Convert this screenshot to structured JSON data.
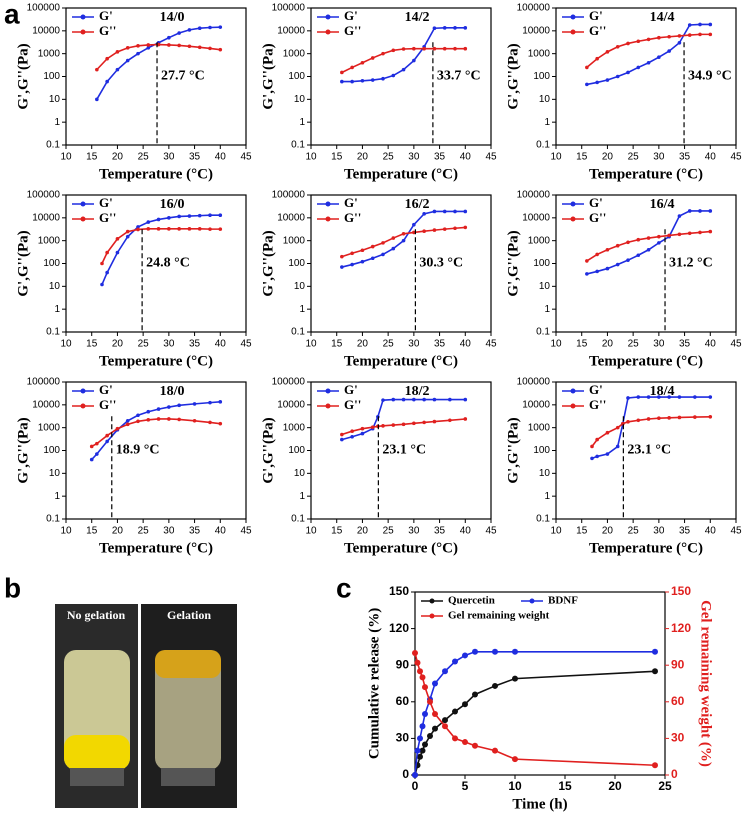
{
  "panel_labels": [
    "a",
    "b",
    "c"
  ],
  "photo": {
    "labels": [
      "No gelation",
      "Gelation"
    ]
  },
  "chart_data": [
    {
      "type": "line",
      "title": "14/0",
      "xlabel": "Temperature (°C)",
      "ylabel": "G',G''(Pa)",
      "log_y": true,
      "xlim": [
        10,
        45
      ],
      "xticks": [
        10,
        15,
        20,
        25,
        30,
        35,
        40,
        45
      ],
      "ylim": [
        0.1,
        100000
      ],
      "yticks": [
        0.1,
        1,
        10,
        100,
        1000,
        10000,
        100000
      ],
      "x": [
        16,
        18,
        20,
        22,
        24,
        26,
        28,
        30,
        32,
        34,
        36,
        38,
        40
      ],
      "annotation": {
        "value": 27.7,
        "label": "27.7 °C"
      },
      "series": [
        {
          "name": "G'",
          "color": "#1f2de0",
          "values": [
            10,
            60,
            200,
            500,
            1000,
            1800,
            3000,
            5000,
            8000,
            11000,
            13000,
            14000,
            14500
          ]
        },
        {
          "name": "G''",
          "color": "#e0201f",
          "values": [
            200,
            600,
            1200,
            1800,
            2200,
            2400,
            2500,
            2400,
            2300,
            2100,
            1900,
            1700,
            1500
          ]
        }
      ]
    },
    {
      "type": "line",
      "title": "14/2",
      "xlabel": "Temperature (°C)",
      "ylabel": "G',G''(Pa)",
      "log_y": true,
      "xlim": [
        10,
        45
      ],
      "xticks": [
        10,
        15,
        20,
        25,
        30,
        35,
        40,
        45
      ],
      "ylim": [
        0.1,
        100000
      ],
      "yticks": [
        0.1,
        1,
        10,
        100,
        1000,
        10000,
        100000
      ],
      "x": [
        16,
        18,
        20,
        22,
        24,
        26,
        28,
        30,
        32,
        34,
        36,
        38,
        40
      ],
      "annotation": {
        "value": 33.7,
        "label": "33.7 °C"
      },
      "series": [
        {
          "name": "G'",
          "color": "#1f2de0",
          "values": [
            60,
            60,
            65,
            70,
            80,
            110,
            200,
            500,
            2000,
            13000,
            13500,
            13500,
            13500
          ]
        },
        {
          "name": "G''",
          "color": "#e0201f",
          "values": [
            150,
            250,
            400,
            650,
            1000,
            1400,
            1600,
            1650,
            1650,
            1650,
            1650,
            1650,
            1650
          ]
        }
      ]
    },
    {
      "type": "line",
      "title": "14/4",
      "xlabel": "Temperature (°C)",
      "ylabel": "G',G''(Pa)",
      "log_y": true,
      "xlim": [
        10,
        45
      ],
      "xticks": [
        10,
        15,
        20,
        25,
        30,
        35,
        40,
        45
      ],
      "ylim": [
        0.1,
        100000
      ],
      "yticks": [
        0.1,
        1,
        10,
        100,
        1000,
        10000,
        100000
      ],
      "x": [
        16,
        18,
        20,
        22,
        24,
        26,
        28,
        30,
        32,
        34,
        36,
        38,
        40
      ],
      "annotation": {
        "value": 34.9,
        "label": "34.9 °C"
      },
      "series": [
        {
          "name": "G'",
          "color": "#1f2de0",
          "values": [
            45,
            55,
            70,
            100,
            150,
            250,
            400,
            700,
            1300,
            3000,
            18000,
            19000,
            19000
          ]
        },
        {
          "name": "G''",
          "color": "#e0201f",
          "values": [
            250,
            600,
            1200,
            2000,
            2800,
            3500,
            4200,
            5000,
            5500,
            6000,
            6500,
            7000,
            7000
          ]
        }
      ]
    },
    {
      "type": "line",
      "title": "16/0",
      "xlabel": "Temperature (°C)",
      "ylabel": "G',G''(Pa)",
      "log_y": true,
      "xlim": [
        10,
        45
      ],
      "xticks": [
        10,
        15,
        20,
        25,
        30,
        35,
        40,
        45
      ],
      "ylim": [
        0.1,
        100000
      ],
      "yticks": [
        0.1,
        1,
        10,
        100,
        1000,
        10000,
        100000
      ],
      "x": [
        17,
        18,
        20,
        22,
        24,
        26,
        28,
        30,
        32,
        34,
        36,
        38,
        40
      ],
      "annotation": {
        "value": 24.8,
        "label": "24.8 °C"
      },
      "series": [
        {
          "name": "G'",
          "color": "#1f2de0",
          "values": [
            12,
            40,
            300,
            1500,
            4000,
            6500,
            8500,
            10000,
            11500,
            12000,
            12500,
            13000,
            13000
          ]
        },
        {
          "name": "G''",
          "color": "#e0201f",
          "values": [
            100,
            300,
            1200,
            2500,
            3100,
            3300,
            3300,
            3300,
            3300,
            3300,
            3300,
            3200,
            3200
          ]
        }
      ]
    },
    {
      "type": "line",
      "title": "16/2",
      "xlabel": "Temperature (°C)",
      "ylabel": "G',G''(Pa)",
      "log_y": true,
      "xlim": [
        10,
        45
      ],
      "xticks": [
        10,
        15,
        20,
        25,
        30,
        35,
        40,
        45
      ],
      "ylim": [
        0.1,
        100000
      ],
      "yticks": [
        0.1,
        1,
        10,
        100,
        1000,
        10000,
        100000
      ],
      "x": [
        16,
        18,
        20,
        22,
        24,
        26,
        28,
        30,
        32,
        34,
        36,
        38,
        40
      ],
      "annotation": {
        "value": 30.3,
        "label": "30.3 °C"
      },
      "series": [
        {
          "name": "G'",
          "color": "#1f2de0",
          "values": [
            70,
            90,
            120,
            170,
            250,
            450,
            1000,
            5000,
            15000,
            19000,
            19000,
            19000,
            19000
          ]
        },
        {
          "name": "G''",
          "color": "#e0201f",
          "values": [
            200,
            280,
            380,
            550,
            800,
            1300,
            2000,
            2300,
            2600,
            2900,
            3200,
            3500,
            3800
          ]
        }
      ]
    },
    {
      "type": "line",
      "title": "16/4",
      "xlabel": "Temperature (°C)",
      "ylabel": "G',G''(Pa)",
      "log_y": true,
      "xlim": [
        10,
        45
      ],
      "xticks": [
        10,
        15,
        20,
        25,
        30,
        35,
        40,
        45
      ],
      "ylim": [
        0.1,
        100000
      ],
      "yticks": [
        0.1,
        1,
        10,
        100,
        1000,
        10000,
        100000
      ],
      "x": [
        16,
        18,
        20,
        22,
        24,
        26,
        28,
        30,
        32,
        34,
        36,
        38,
        40
      ],
      "annotation": {
        "value": 31.2,
        "label": "31.2 °C"
      },
      "series": [
        {
          "name": "G'",
          "color": "#1f2de0",
          "values": [
            35,
            45,
            60,
            90,
            140,
            230,
            400,
            800,
            1500,
            12000,
            20000,
            20000,
            20000
          ]
        },
        {
          "name": "G''",
          "color": "#e0201f",
          "values": [
            130,
            250,
            400,
            600,
            850,
            1100,
            1300,
            1500,
            1700,
            1900,
            2100,
            2300,
            2500
          ]
        }
      ]
    },
    {
      "type": "line",
      "title": "18/0",
      "xlabel": "Temperature (°C)",
      "ylabel": "G',G''(Pa)",
      "log_y": true,
      "xlim": [
        10,
        45
      ],
      "xticks": [
        10,
        15,
        20,
        25,
        30,
        35,
        40,
        45
      ],
      "ylim": [
        0.1,
        100000
      ],
      "yticks": [
        0.1,
        1,
        10,
        100,
        1000,
        10000,
        100000
      ],
      "x": [
        15,
        16,
        18,
        20,
        22,
        24,
        26,
        28,
        30,
        32,
        35,
        38,
        40
      ],
      "annotation": {
        "value": 18.9,
        "label": "18.9 °C"
      },
      "series": [
        {
          "name": "G'",
          "color": "#1f2de0",
          "values": [
            40,
            70,
            250,
            800,
            2000,
            3500,
            5000,
            6500,
            8000,
            9500,
            11000,
            12500,
            13500
          ]
        },
        {
          "name": "G''",
          "color": "#e0201f",
          "values": [
            150,
            200,
            450,
            900,
            1400,
            1900,
            2200,
            2400,
            2400,
            2300,
            2000,
            1700,
            1500
          ]
        }
      ]
    },
    {
      "type": "line",
      "title": "18/2",
      "xlabel": "Temperature (°C)",
      "ylabel": "G',G''(Pa)",
      "log_y": true,
      "xlim": [
        10,
        45
      ],
      "xticks": [
        10,
        15,
        20,
        25,
        30,
        35,
        40,
        45
      ],
      "ylim": [
        0.1,
        100000
      ],
      "yticks": [
        0.1,
        1,
        10,
        100,
        1000,
        10000,
        100000
      ],
      "x": [
        16,
        18,
        20,
        22,
        23,
        24,
        26,
        28,
        30,
        32,
        34,
        37,
        40
      ],
      "annotation": {
        "value": 23.1,
        "label": "23.1 °C"
      },
      "series": [
        {
          "name": "G'",
          "color": "#1f2de0",
          "values": [
            300,
            400,
            550,
            900,
            3000,
            16000,
            17000,
            17000,
            17000,
            17000,
            17000,
            17000,
            17000
          ]
        },
        {
          "name": "G''",
          "color": "#e0201f",
          "values": [
            500,
            700,
            900,
            1050,
            1150,
            1200,
            1300,
            1400,
            1550,
            1700,
            1850,
            2100,
            2400
          ]
        }
      ]
    },
    {
      "type": "line",
      "title": "18/4",
      "xlabel": "Temperature (°C)",
      "ylabel": "G',G''(Pa)",
      "log_y": true,
      "xlim": [
        10,
        45
      ],
      "xticks": [
        10,
        15,
        20,
        25,
        30,
        35,
        40,
        45
      ],
      "ylim": [
        0.1,
        100000
      ],
      "yticks": [
        0.1,
        1,
        10,
        100,
        1000,
        10000,
        100000
      ],
      "x": [
        17,
        18,
        20,
        22,
        23,
        24,
        26,
        28,
        30,
        32,
        34,
        37,
        40
      ],
      "annotation": {
        "value": 23.1,
        "label": "23.1 °C"
      },
      "series": [
        {
          "name": "G'",
          "color": "#1f2de0",
          "values": [
            45,
            55,
            70,
            150,
            1500,
            20000,
            22000,
            22000,
            22000,
            22000,
            22000,
            22000,
            22000
          ]
        },
        {
          "name": "G''",
          "color": "#e0201f",
          "values": [
            150,
            300,
            600,
            1000,
            1500,
            1800,
            2100,
            2400,
            2600,
            2700,
            2800,
            2900,
            3000
          ]
        }
      ]
    },
    {
      "type": "line",
      "xlabel": "Time (h)",
      "ylabel": "Cumulative release (%)",
      "y2label": "Gel remaining weight (%)",
      "xlim": [
        0,
        25
      ],
      "xticks": [
        0,
        5,
        10,
        15,
        20,
        25
      ],
      "ylim": [
        0,
        150
      ],
      "yticks": [
        0,
        30,
        60,
        90,
        120,
        150
      ],
      "y2lim": [
        0,
        150
      ],
      "y2ticks": [
        0,
        30,
        60,
        90,
        120,
        150
      ],
      "x": [
        0,
        0.25,
        0.5,
        0.75,
        1,
        1.5,
        2,
        3,
        4,
        5,
        6,
        8,
        10,
        24
      ],
      "series": [
        {
          "name": "Quercetin",
          "color": "#111111",
          "values": [
            0,
            8,
            15,
            20,
            25,
            32,
            38,
            45,
            52,
            58,
            66,
            73,
            79,
            85
          ]
        },
        {
          "name": "BDNF",
          "color": "#1f2de0",
          "values": [
            0,
            20,
            30,
            40,
            50,
            62,
            75,
            85,
            93,
            98,
            101,
            101,
            101,
            101
          ]
        },
        {
          "name": "Gel remaining weight",
          "color": "#e0201f",
          "axis": "y2",
          "values": [
            100,
            92,
            85,
            80,
            72,
            60,
            50,
            40,
            30,
            27,
            24,
            20,
            13,
            8
          ]
        }
      ]
    }
  ]
}
